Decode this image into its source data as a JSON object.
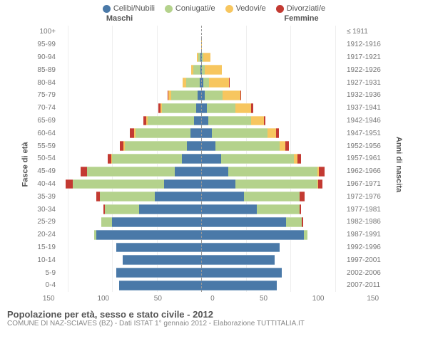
{
  "legend": [
    {
      "label": "Celibi/Nubili",
      "color": "#4a79a8"
    },
    {
      "label": "Coniugati/e",
      "color": "#b4d28c"
    },
    {
      "label": "Vedovi/e",
      "color": "#f7c65f"
    },
    {
      "label": "Divorziati/e",
      "color": "#c33a32"
    }
  ],
  "side_labels": {
    "male": "Maschi",
    "female": "Femmine"
  },
  "axis_titles": {
    "left": "Fasce di età",
    "right": "Anni di nascita"
  },
  "x_ticks": [
    0,
    50,
    100,
    150
  ],
  "x_max": 160,
  "colors": {
    "single": "#4a79a8",
    "married": "#b4d28c",
    "widowed": "#f7c65f",
    "divorced": "#c33a32",
    "grid": "#eeeeee",
    "text": "#777777",
    "center_line": "#999999",
    "background": "#ffffff"
  },
  "rows": [
    {
      "age": "100+",
      "birth": "≤ 1911",
      "m": [
        0,
        0,
        0,
        0
      ],
      "f": [
        0,
        0,
        0,
        0
      ]
    },
    {
      "age": "95-99",
      "birth": "1912-1916",
      "m": [
        0,
        0,
        0,
        0
      ],
      "f": [
        0,
        0,
        1,
        0
      ]
    },
    {
      "age": "90-94",
      "birth": "1917-1921",
      "m": [
        1,
        2,
        2,
        0
      ],
      "f": [
        1,
        1,
        8,
        0
      ]
    },
    {
      "age": "85-89",
      "birth": "1922-1926",
      "m": [
        1,
        8,
        2,
        0
      ],
      "f": [
        1,
        3,
        19,
        0
      ]
    },
    {
      "age": "80-84",
      "birth": "1927-1931",
      "m": [
        2,
        15,
        4,
        0
      ],
      "f": [
        2,
        7,
        22,
        1
      ]
    },
    {
      "age": "75-79",
      "birth": "1932-1936",
      "m": [
        4,
        30,
        3,
        1
      ],
      "f": [
        4,
        20,
        20,
        1
      ]
    },
    {
      "age": "70-74",
      "birth": "1937-1941",
      "m": [
        6,
        38,
        2,
        2
      ],
      "f": [
        6,
        32,
        18,
        2
      ]
    },
    {
      "age": "65-69",
      "birth": "1942-1946",
      "m": [
        8,
        52,
        2,
        3
      ],
      "f": [
        8,
        48,
        14,
        2
      ]
    },
    {
      "age": "60-64",
      "birth": "1947-1951",
      "m": [
        12,
        62,
        1,
        5
      ],
      "f": [
        12,
        62,
        10,
        3
      ]
    },
    {
      "age": "55-59",
      "birth": "1952-1956",
      "m": [
        16,
        70,
        1,
        4
      ],
      "f": [
        16,
        72,
        6,
        4
      ]
    },
    {
      "age": "50-54",
      "birth": "1957-1961",
      "m": [
        22,
        78,
        1,
        4
      ],
      "f": [
        22,
        82,
        4,
        4
      ]
    },
    {
      "age": "45-49",
      "birth": "1962-1966",
      "m": [
        30,
        98,
        0,
        7
      ],
      "f": [
        30,
        100,
        2,
        6
      ]
    },
    {
      "age": "40-44",
      "birth": "1967-1971",
      "m": [
        42,
        102,
        0,
        8
      ],
      "f": [
        38,
        92,
        1,
        5
      ]
    },
    {
      "age": "35-39",
      "birth": "1972-1976",
      "m": [
        52,
        62,
        0,
        4
      ],
      "f": [
        48,
        62,
        0,
        6
      ]
    },
    {
      "age": "30-34",
      "birth": "1977-1981",
      "m": [
        70,
        38,
        0,
        2
      ],
      "f": [
        62,
        48,
        0,
        2
      ]
    },
    {
      "age": "25-29",
      "birth": "1982-1986",
      "m": [
        100,
        12,
        0,
        0
      ],
      "f": [
        95,
        18,
        0,
        1
      ]
    },
    {
      "age": "20-24",
      "birth": "1987-1991",
      "m": [
        118,
        2,
        0,
        0
      ],
      "f": [
        115,
        4,
        0,
        0
      ]
    },
    {
      "age": "15-19",
      "birth": "1992-1996",
      "m": [
        95,
        0,
        0,
        0
      ],
      "f": [
        88,
        0,
        0,
        0
      ]
    },
    {
      "age": "10-14",
      "birth": "1997-2001",
      "m": [
        88,
        0,
        0,
        0
      ],
      "f": [
        82,
        0,
        0,
        0
      ]
    },
    {
      "age": "5-9",
      "birth": "2002-2006",
      "m": [
        95,
        0,
        0,
        0
      ],
      "f": [
        90,
        0,
        0,
        0
      ]
    },
    {
      "age": "0-4",
      "birth": "2007-2011",
      "m": [
        92,
        0,
        0,
        0
      ],
      "f": [
        85,
        0,
        0,
        0
      ]
    }
  ],
  "footer": {
    "title": "Popolazione per età, sesso e stato civile - 2012",
    "subtitle": "COMUNE DI NAZ-SCIAVES (BZ) - Dati ISTAT 1° gennaio 2012 - Elaborazione TUTTITALIA.IT"
  }
}
